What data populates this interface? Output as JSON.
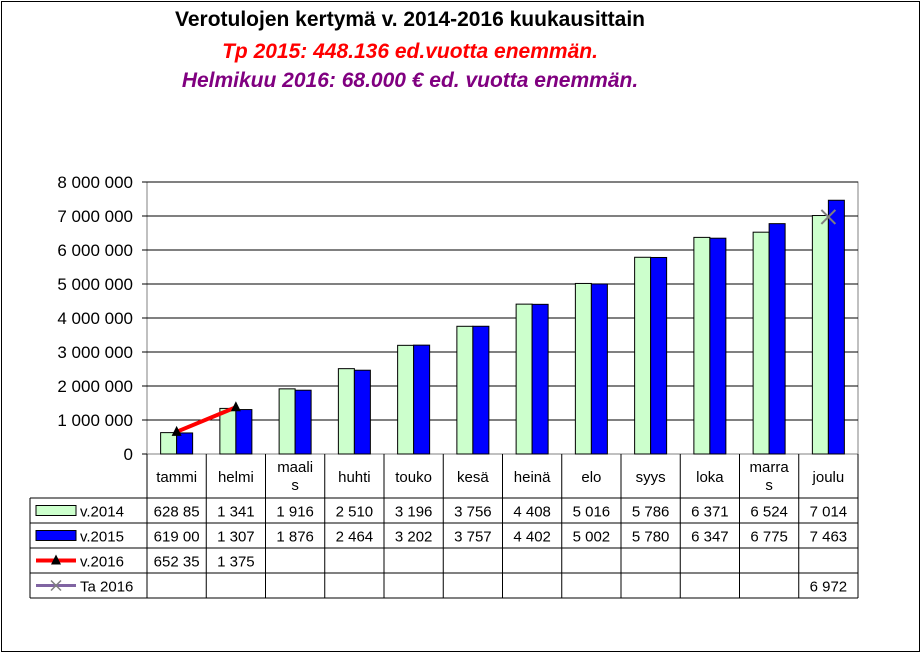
{
  "chart_data": {
    "type": "bar",
    "title": "Verotulojen kertymä v. 2014-2016  kuukausittain",
    "subtitles": [
      {
        "text": "Tp 2015: 448.136 ed.vuotta enemmän.",
        "color": "#ff0000"
      },
      {
        "text": "Helmikuu 2016: 68.000 € ed. vuotta enemmän.",
        "color": "#800080"
      }
    ],
    "categories": [
      "tammi",
      "helmi",
      "maali\ns",
      "huhti",
      "touko",
      "kesä",
      "heinä",
      "elo",
      "syys",
      "loka",
      "marra\ns",
      "joulu"
    ],
    "ylim": [
      0,
      8000000
    ],
    "yticks": [
      "0",
      "1 000 000",
      "2 000 000",
      "3 000 000",
      "4 000 000",
      "5 000 000",
      "6 000 000",
      "7 000 000",
      "8 000 000"
    ],
    "grid": true,
    "legend": "data-table",
    "series": [
      {
        "name": "v.2014",
        "kind": "bar",
        "color": "#ccffcc",
        "values": [
          628850,
          1341000,
          1916000,
          2510000,
          3196000,
          3756000,
          4408000,
          5016000,
          5786000,
          6371000,
          6524000,
          7014000
        ],
        "labels": [
          "628 85",
          "1 341",
          "1 916",
          "2 510",
          "3 196",
          "3 756",
          "4 408",
          "5 016",
          "5 786",
          "6 371",
          "6 524",
          "7 014"
        ]
      },
      {
        "name": "v.2015",
        "kind": "bar",
        "color": "#0000ff",
        "values": [
          619000,
          1307000,
          1876000,
          2464000,
          3202000,
          3757000,
          4402000,
          5002000,
          5780000,
          6347000,
          6775000,
          7463000
        ],
        "labels": [
          "619 00",
          "1 307",
          "1 876",
          "2 464",
          "3 202",
          "3 757",
          "4 402",
          "5 002",
          "5 780",
          "6 347",
          "6 775",
          "7 463"
        ]
      },
      {
        "name": "v.2016",
        "kind": "line",
        "color": "#ff0000",
        "marker": "triangle",
        "values": [
          652350,
          1375000,
          null,
          null,
          null,
          null,
          null,
          null,
          null,
          null,
          null,
          null
        ],
        "labels": [
          "652 35",
          "1 375",
          "",
          "",
          "",
          "",
          "",
          "",
          "",
          "",
          "",
          ""
        ]
      },
      {
        "name": "Ta 2016",
        "kind": "point",
        "color": "#8064a2",
        "marker": "x",
        "values": [
          null,
          null,
          null,
          null,
          null,
          null,
          null,
          null,
          null,
          null,
          null,
          6972000
        ],
        "labels": [
          "",
          "",
          "",
          "",
          "",
          "",
          "",
          "",
          "",
          "",
          "",
          "6 972"
        ]
      }
    ]
  }
}
